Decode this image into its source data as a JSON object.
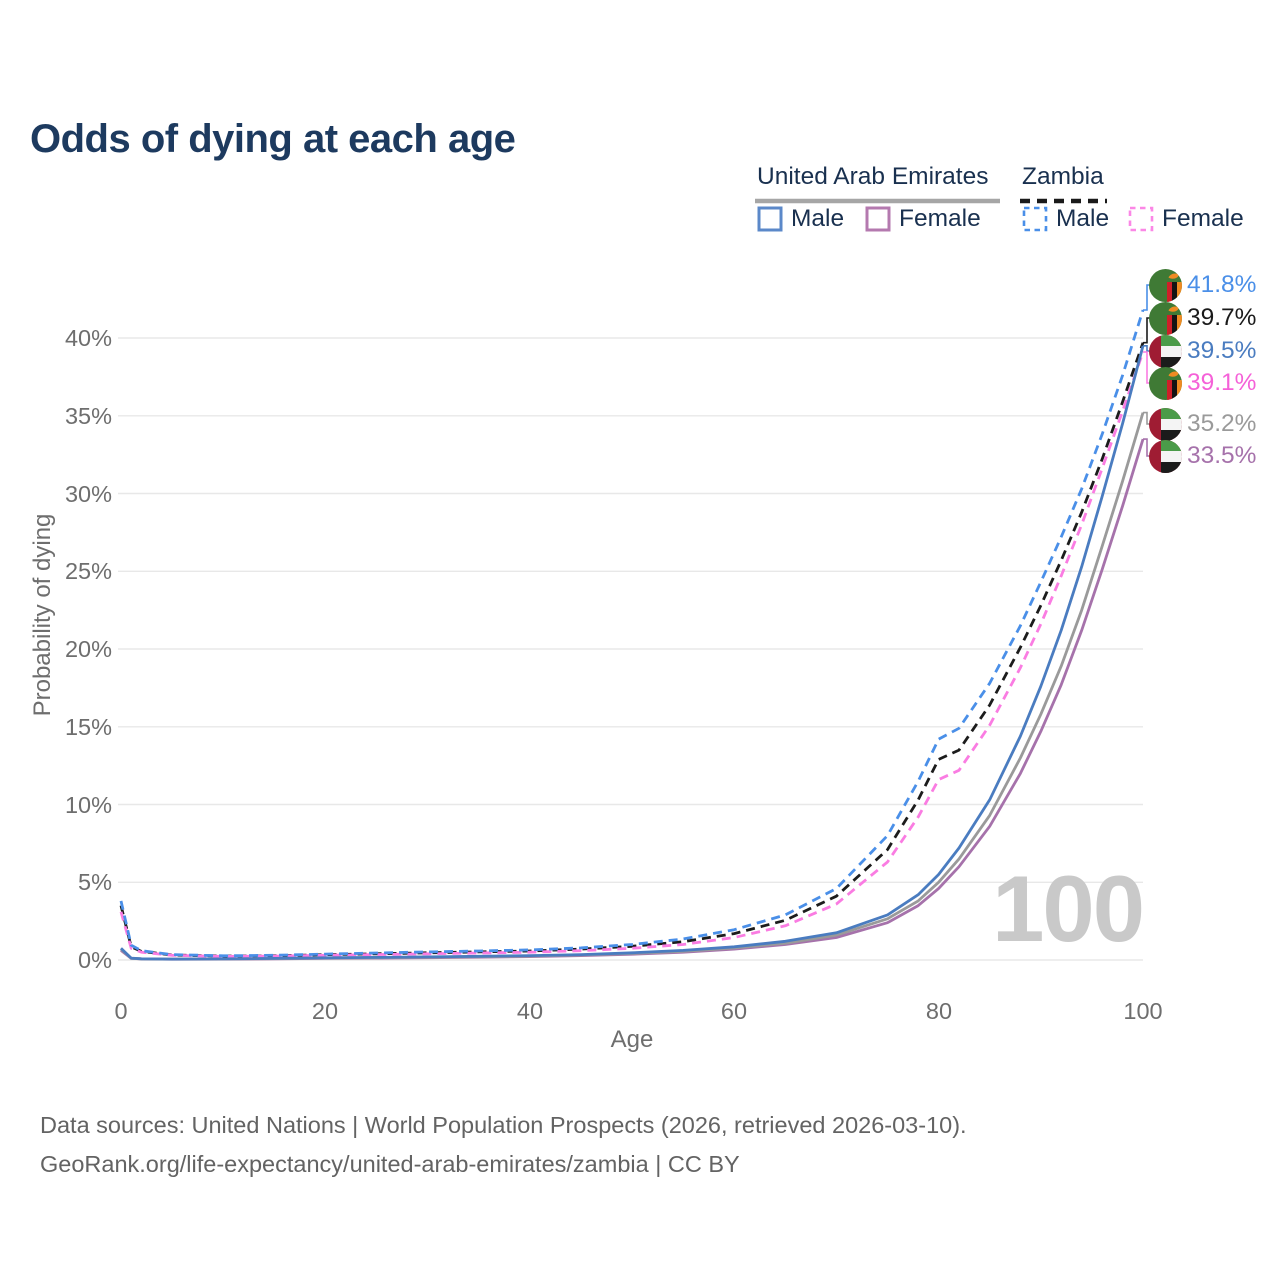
{
  "title": "Odds of dying at each age",
  "watermark": "100",
  "footer": {
    "line1": "Data sources: United Nations | World Population Prospects (2026, retrieved 2026-03-10).",
    "line2": "GeoRank.org/life-expectancy/united-arab-emirates/zambia | CC BY"
  },
  "legend": {
    "groups": [
      {
        "name": "United Arab Emirates",
        "line_style": "solid",
        "underline_color": "#a6a6a6",
        "items": [
          {
            "label": "Male",
            "color": "#5b88c9",
            "dashed": false
          },
          {
            "label": "Female",
            "color": "#b479af",
            "dashed": false
          }
        ]
      },
      {
        "name": "Zambia",
        "line_style": "dashed",
        "underline_color": "#1a1a1a",
        "items": [
          {
            "label": "Male",
            "color": "#4a8fe8",
            "dashed": true
          },
          {
            "label": "Female",
            "color": "#fb87e6",
            "dashed": true
          }
        ]
      }
    ]
  },
  "chart_data": {
    "type": "line",
    "title": "Odds of dying at each age",
    "xlabel": "Age",
    "ylabel": "Probability of dying",
    "x_ticks": [
      0,
      20,
      40,
      60,
      80,
      100
    ],
    "x_tick_labels": [
      "0",
      "20",
      "40",
      "60",
      "80",
      "100"
    ],
    "y_ticks": [
      0,
      5,
      10,
      15,
      20,
      25,
      30,
      35,
      40
    ],
    "y_tick_labels": [
      "0%",
      "5%",
      "10%",
      "15%",
      "20%",
      "25%",
      "30%",
      "35%",
      "40%"
    ],
    "xlim": [
      0,
      100
    ],
    "ylim": [
      0,
      43
    ],
    "grid": true,
    "legend_position": "top-right",
    "ages": [
      0,
      1,
      2,
      5,
      10,
      15,
      20,
      25,
      30,
      35,
      40,
      45,
      50,
      55,
      60,
      65,
      70,
      75,
      78,
      80,
      82,
      85,
      88,
      90,
      92,
      94,
      96,
      98,
      100
    ],
    "series": [
      {
        "id": "zambia-male",
        "name": "Zambia Male",
        "country": "Zambia",
        "sex": "male",
        "line_style": "dashed",
        "color": "#4a8fe8",
        "flag": "zambia-flag",
        "end_label": "41.8%",
        "end_label_color": "#4a8fe8",
        "values": [
          3.8,
          0.95,
          0.6,
          0.35,
          0.27,
          0.3,
          0.38,
          0.45,
          0.52,
          0.58,
          0.65,
          0.78,
          1.0,
          1.35,
          1.95,
          2.9,
          4.6,
          8.0,
          11.5,
          14.2,
          14.9,
          17.8,
          21.5,
          24.3,
          27.2,
          30.3,
          33.8,
          37.6,
          41.8
        ]
      },
      {
        "id": "zambia-both",
        "name": "Zambia (both sexes)",
        "country": "Zambia",
        "sex": "both",
        "line_style": "dashed",
        "color": "#1c1c1c",
        "flag": "zambia-flag",
        "end_label": "39.7%",
        "end_label_color": "#1a1a1a",
        "values": [
          3.5,
          0.85,
          0.55,
          0.32,
          0.25,
          0.27,
          0.34,
          0.4,
          0.46,
          0.52,
          0.58,
          0.7,
          0.88,
          1.18,
          1.7,
          2.55,
          4.1,
          7.1,
          10.3,
          12.9,
          13.5,
          16.4,
          20.1,
          22.8,
          25.7,
          28.8,
          32.2,
          35.9,
          39.7
        ]
      },
      {
        "id": "uae-male",
        "name": "United Arab Emirates Male",
        "country": "United Arab Emirates",
        "sex": "male",
        "line_style": "solid",
        "color": "#4a7cc0",
        "flag": "uae-flag",
        "end_label": "39.5%",
        "end_label_color": "#4a7cc0",
        "values": [
          0.75,
          0.12,
          0.08,
          0.06,
          0.07,
          0.1,
          0.14,
          0.17,
          0.2,
          0.24,
          0.28,
          0.35,
          0.46,
          0.62,
          0.85,
          1.2,
          1.75,
          2.9,
          4.2,
          5.5,
          7.2,
          10.3,
          14.4,
          17.6,
          21.2,
          25.3,
          29.8,
          34.5,
          39.5
        ]
      },
      {
        "id": "zambia-female",
        "name": "Zambia Female",
        "country": "Zambia",
        "sex": "female",
        "line_style": "dashed",
        "color": "#fa7ce2",
        "flag": "zambia-flag",
        "end_label": "39.1%",
        "end_label_color": "#f561d8",
        "values": [
          3.1,
          0.75,
          0.5,
          0.3,
          0.23,
          0.25,
          0.3,
          0.35,
          0.4,
          0.45,
          0.5,
          0.6,
          0.75,
          1.0,
          1.45,
          2.2,
          3.6,
          6.3,
          9.2,
          11.6,
          12.2,
          15.1,
          18.8,
          21.6,
          24.7,
          28.0,
          31.6,
          35.3,
          39.1
        ]
      },
      {
        "id": "uae-both",
        "name": "United Arab Emirates (both sexes)",
        "country": "United Arab Emirates",
        "sex": "both",
        "line_style": "solid",
        "color": "#9a9a9a",
        "flag": "uae-flag",
        "end_label": "35.2%",
        "end_label_color": "#9a9a9a",
        "values": [
          0.7,
          0.11,
          0.08,
          0.06,
          0.07,
          0.09,
          0.12,
          0.15,
          0.18,
          0.21,
          0.25,
          0.32,
          0.42,
          0.56,
          0.77,
          1.08,
          1.6,
          2.65,
          3.8,
          5.0,
          6.5,
          9.3,
          13.0,
          15.8,
          18.9,
          22.5,
          26.6,
          30.8,
          35.2
        ]
      },
      {
        "id": "uae-female",
        "name": "United Arab Emirates Female",
        "country": "United Arab Emirates",
        "sex": "female",
        "line_style": "solid",
        "color": "#a672ab",
        "flag": "uae-flag",
        "end_label": "33.5%",
        "end_label_color": "#a672ab",
        "values": [
          0.62,
          0.1,
          0.07,
          0.05,
          0.06,
          0.08,
          0.1,
          0.12,
          0.15,
          0.18,
          0.22,
          0.28,
          0.37,
          0.5,
          0.7,
          1.0,
          1.45,
          2.4,
          3.5,
          4.6,
          6.0,
          8.6,
          12.0,
          14.7,
          17.7,
          21.2,
          25.1,
          29.2,
          33.5
        ]
      }
    ]
  }
}
